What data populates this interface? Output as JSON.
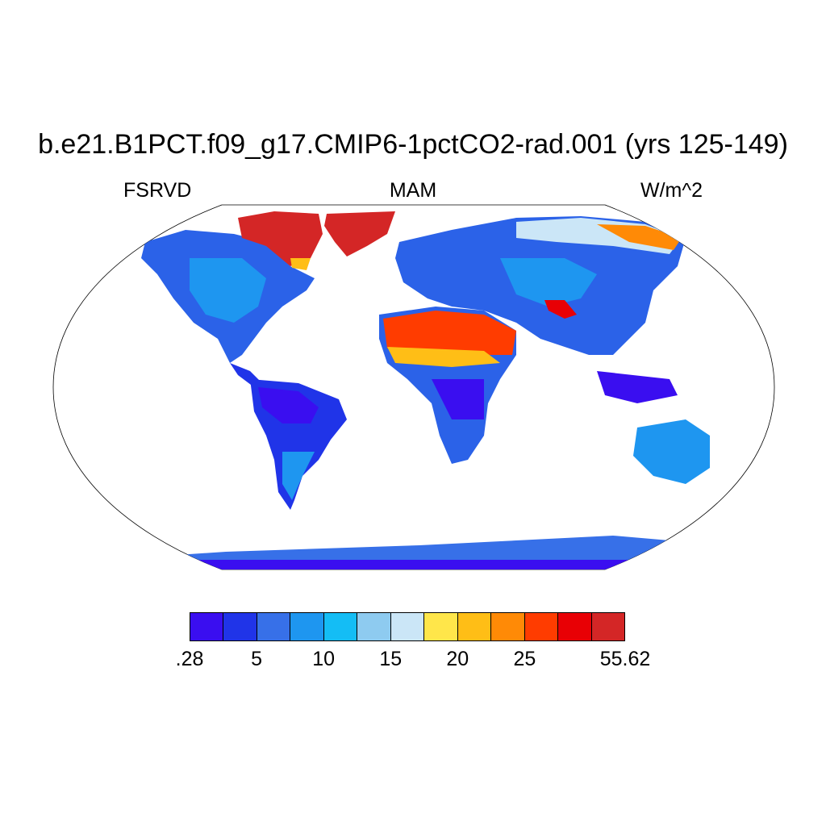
{
  "title": "b.e21.B1PCT.f09_g17.CMIP6-1pctCO2-rad.001 (yrs 125-149)",
  "left_label": "FSRVD",
  "center_label": "MAM",
  "right_label": "W/m^2",
  "colorbar": {
    "colors": [
      "#3a0ef0",
      "#2034e8",
      "#3770e8",
      "#1e96f0",
      "#14bdf5",
      "#8ecbf0",
      "#cbe6f7",
      "#ffe64a",
      "#ffbe16",
      "#ff8a06",
      "#ff3c00",
      "#e80005",
      "#d42626"
    ],
    "tick_labels": [
      {
        "label": ".28",
        "boundary": 0
      },
      {
        "label": "5",
        "boundary": 1
      },
      {
        "label": "10",
        "boundary": 2
      },
      {
        "label": "15",
        "boundary": 3
      },
      {
        "label": "20",
        "boundary": 4
      },
      {
        "label": "25",
        "boundary": 5
      },
      {
        "label": "55.62",
        "boundary": 6
      }
    ]
  }
}
